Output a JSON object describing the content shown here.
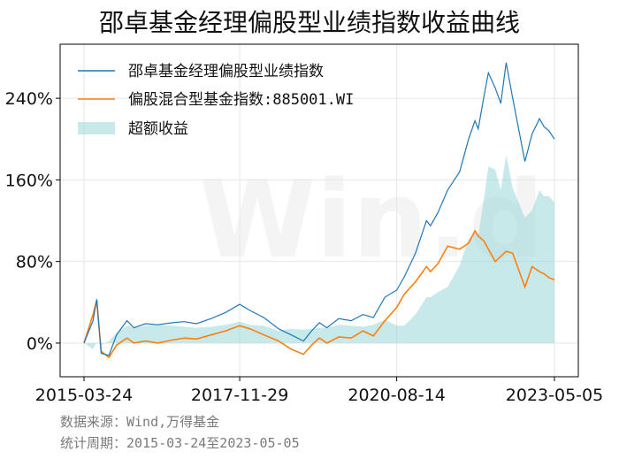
{
  "chart_data": {
    "type": "line",
    "title": "邵卓基金经理偏股型业绩指数收益曲线",
    "watermark": "Win.d",
    "x_ticks": [
      "2015-03-24",
      "2017-11-29",
      "2020-08-14",
      "2023-05-05"
    ],
    "y_ticks": [
      "0%",
      "80%",
      "160%",
      "240%"
    ],
    "y_tick_values": [
      0,
      80,
      160,
      240
    ],
    "ylim": [
      -33,
      293
    ],
    "grid": true,
    "legend_position": "top-left",
    "colors": {
      "manager": "#1f77b4",
      "fund_index": "#ff7f0e",
      "excess": "#8fd3d6"
    },
    "x_dates": [
      "2015-03-24",
      "2015-05-20",
      "2015-06-12",
      "2015-07-10",
      "2015-08-28",
      "2015-10-15",
      "2015-12-20",
      "2016-02-01",
      "2016-04-15",
      "2016-07-01",
      "2016-10-01",
      "2016-12-15",
      "2017-03-01",
      "2017-06-01",
      "2017-09-01",
      "2017-11-29",
      "2018-02-01",
      "2018-05-01",
      "2018-08-01",
      "2018-10-20",
      "2019-01-05",
      "2019-02-25",
      "2019-04-15",
      "2019-06-01",
      "2019-08-15",
      "2019-11-01",
      "2020-01-15",
      "2020-03-20",
      "2020-06-01",
      "2020-08-14",
      "2020-10-01",
      "2020-12-10",
      "2021-02-18",
      "2021-03-15",
      "2021-05-01",
      "2021-07-01",
      "2021-09-15",
      "2021-11-10",
      "2021-12-20",
      "2022-01-10",
      "2022-02-15",
      "2022-03-15",
      "2022-04-27",
      "2022-06-01",
      "2022-07-05",
      "2022-08-15",
      "2022-10-31",
      "2022-12-15",
      "2023-01-31",
      "2023-03-01",
      "2023-04-01",
      "2023-05-05"
    ],
    "series": [
      {
        "name": "邵卓基金经理偏股型业绩指数",
        "values": [
          0,
          22,
          43,
          -10,
          -12,
          8,
          22,
          15,
          19,
          18,
          20,
          21,
          19,
          24,
          30,
          38,
          32,
          25,
          14,
          8,
          2,
          12,
          20,
          15,
          24,
          22,
          28,
          25,
          45,
          52,
          65,
          88,
          120,
          115,
          128,
          150,
          168,
          200,
          218,
          210,
          242,
          265,
          250,
          235,
          275,
          240,
          178,
          205,
          220,
          212,
          208,
          200
        ]
      },
      {
        "name": "偏股混合型基金指数:885001.WI",
        "values": [
          0,
          28,
          42,
          -8,
          -14,
          -2,
          5,
          0,
          2,
          0,
          3,
          5,
          4,
          8,
          12,
          17,
          14,
          8,
          2,
          -6,
          -11,
          -2,
          5,
          0,
          6,
          5,
          12,
          7,
          22,
          35,
          48,
          60,
          75,
          70,
          78,
          95,
          92,
          98,
          110,
          105,
          100,
          92,
          80,
          85,
          90,
          88,
          55,
          75,
          70,
          68,
          64,
          62
        ]
      },
      {
        "name": "超额收益",
        "values": [
          0,
          -6,
          1,
          -2,
          2,
          10,
          17,
          15,
          17,
          18,
          17,
          16,
          15,
          16,
          18,
          21,
          18,
          17,
          12,
          14,
          13,
          14,
          15,
          15,
          18,
          17,
          16,
          18,
          23,
          17,
          17,
          28,
          45,
          45,
          50,
          55,
          76,
          102,
          108,
          105,
          142,
          173,
          170,
          150,
          185,
          152,
          123,
          130,
          150,
          144,
          144,
          138
        ]
      }
    ]
  },
  "notes": {
    "source": "数据来源：Wind,万得基金",
    "period": "统计周期：2015-03-24至2023-05-05"
  }
}
